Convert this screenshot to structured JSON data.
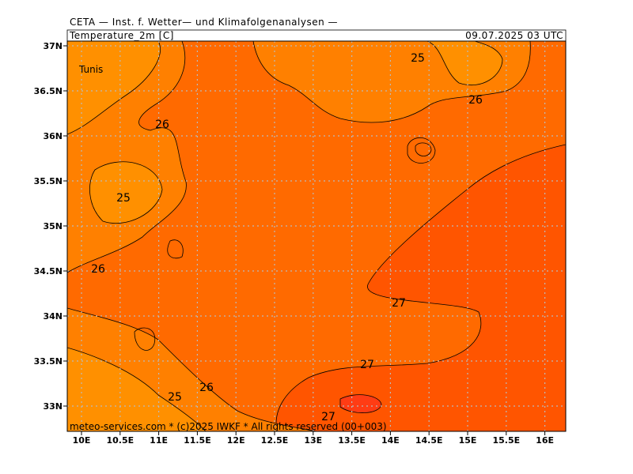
{
  "header": {
    "title": "CETA — Inst. f. Wetter— und Klimafolgenanalysen —",
    "field": "Temperature_2m [C]",
    "valid": "09.07.2025 03 UTC"
  },
  "map": {
    "place_labels": [
      "Tunis"
    ],
    "contour_labels": [
      "25",
      "26",
      "26",
      "25",
      "26",
      "27",
      "27",
      "26",
      "25",
      "27"
    ],
    "lat_labels": [
      "37N",
      "36.5N",
      "36N",
      "35.5N",
      "35N",
      "34.5N",
      "34N",
      "33.5N",
      "33N"
    ],
    "lon_labels": [
      "10E",
      "10.5E",
      "11E",
      "11.5E",
      "12E",
      "12.5E",
      "13E",
      "13.5E",
      "14E",
      "14.5E",
      "15E",
      "15.5E",
      "16E"
    ]
  },
  "footer": "meteo-services.com * (c)2025 IWKF * All rights reserved (00+003)"
}
